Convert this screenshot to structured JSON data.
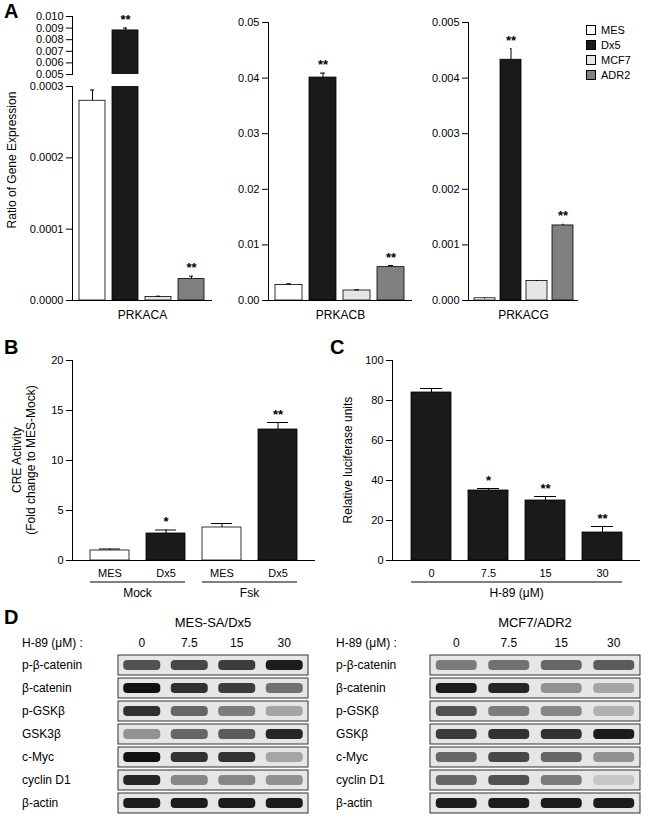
{
  "chart_data": [
    {
      "panel": "A",
      "type": "bar",
      "y_label": "Ratio of Gene Expression",
      "legend": "top-right",
      "series": [
        {
          "name": "MES",
          "color": "#ffffff"
        },
        {
          "name": "Dx5",
          "color": "#1a1a1a"
        },
        {
          "name": "MCF7",
          "color": "#e6e6e6"
        },
        {
          "name": "ADR2",
          "color": "#808080"
        }
      ],
      "subplots": [
        {
          "category": "PRKACA",
          "y_segments": [
            {
              "ylim": [
                0,
                0.0003
              ],
              "yticks": [
                {
                  "value": 0,
                  "label": "0.0000"
                },
                0.0001,
                0.0002,
                0.0003
              ]
            },
            {
              "ylim": [
                0.005,
                0.01
              ],
              "yticks": [
                0.005,
                0.006,
                0.007,
                0.008,
                0.009,
                {
                  "value": 0.01,
                  "label": "0.010"
                }
              ]
            }
          ],
          "values": [
            0.00028,
            0.0088,
            5e-06,
            3e-05
          ],
          "errors": [
            1.5e-05,
            0.0002,
            1e-06,
            4e-06
          ],
          "annotations": [
            null,
            "**",
            null,
            "**"
          ]
        },
        {
          "category": "PRKACB",
          "ylim": [
            0,
            0.05
          ],
          "yticks": [
            {
              "value": 0,
              "label": "0.00"
            },
            0.01,
            0.02,
            0.03,
            0.04,
            0.05
          ],
          "values": [
            0.0028,
            0.0401,
            0.0018,
            0.006
          ],
          "errors": [
            0.0002,
            0.0008,
            0.0001,
            0.0003
          ],
          "annotations": [
            null,
            "**",
            null,
            "**"
          ]
        },
        {
          "category": "PRKACG",
          "ylim": [
            0,
            0.005
          ],
          "yticks": [
            {
              "value": 0,
              "label": "0.000"
            },
            0.001,
            0.002,
            0.003,
            0.004,
            0.005
          ],
          "values": [
            4e-05,
            0.00433,
            0.00035,
            0.00135
          ],
          "errors": [
            3e-06,
            0.0002,
            1e-05,
            2e-05
          ],
          "annotations": [
            null,
            "**",
            null,
            "**"
          ]
        }
      ]
    },
    {
      "panel": "B",
      "type": "bar",
      "y_label": [
        "CRE Activity",
        "(Fold change to MES-Mock)"
      ],
      "categories": [
        "MES",
        "Dx5",
        "MES",
        "Dx5"
      ],
      "groups": [
        {
          "label": "Mock",
          "size": 2
        },
        {
          "label": "Fsk",
          "size": 2
        }
      ],
      "values": [
        1.0,
        2.7,
        3.3,
        13.1
      ],
      "errors": [
        0.15,
        0.35,
        0.4,
        0.7
      ],
      "annotations": [
        null,
        "*",
        null,
        "**"
      ],
      "colors": [
        "#ffffff",
        "#1a1a1a",
        "#ffffff",
        "#1a1a1a"
      ],
      "ylim": [
        0,
        20
      ],
      "yticks": [
        0,
        5,
        10,
        15,
        20
      ]
    },
    {
      "panel": "C",
      "type": "bar",
      "y_label": "Relative luciferase units",
      "x_label": "H-89 (μM)",
      "categories": [
        "0",
        "7.5",
        "15",
        "30"
      ],
      "values": [
        84,
        35,
        30,
        14
      ],
      "errors": [
        2,
        1,
        2,
        3
      ],
      "annotations": [
        null,
        "*",
        "**",
        "**"
      ],
      "color": "#1a1a1a",
      "ylim": [
        0,
        100
      ],
      "yticks": [
        0,
        20,
        40,
        60,
        80,
        100
      ]
    },
    {
      "panel": "D",
      "type": "western_blot",
      "treatment_label": "H-89 (μM) :",
      "lanes": [
        "0",
        "7.5",
        "15",
        "30"
      ],
      "blots": [
        {
          "title": "MES-SA/Dx5",
          "rows": [
            {
              "label": "p-β-catenin",
              "band_intensity": [
                0.7,
                0.75,
                0.8,
                0.95
              ]
            },
            {
              "label": "β-catenin",
              "band_intensity": [
                1.0,
                0.85,
                0.8,
                0.55
              ]
            },
            {
              "label": "p-GSKβ",
              "band_intensity": [
                0.85,
                0.6,
                0.5,
                0.3
              ]
            },
            {
              "label": "GSK3β",
              "band_intensity": [
                0.4,
                0.6,
                0.65,
                0.9
              ]
            },
            {
              "label": "c-Myc",
              "band_intensity": [
                1.0,
                0.85,
                0.85,
                0.3
              ]
            },
            {
              "label": "cyclin D1",
              "band_intensity": [
                0.9,
                0.45,
                0.45,
                0.4
              ]
            },
            {
              "label": "β-actin",
              "band_intensity": [
                0.95,
                0.95,
                0.95,
                0.95
              ]
            }
          ]
        },
        {
          "title": "MCF7/ADR2",
          "rows": [
            {
              "label": "p-β-catenin",
              "band_intensity": [
                0.5,
                0.55,
                0.6,
                0.65
              ]
            },
            {
              "label": "β-catenin",
              "band_intensity": [
                0.95,
                0.9,
                0.4,
                0.3
              ]
            },
            {
              "label": "p-GSKβ",
              "band_intensity": [
                0.7,
                0.5,
                0.45,
                0.25
              ]
            },
            {
              "label": "GSKβ",
              "band_intensity": [
                0.8,
                0.85,
                0.85,
                0.95
              ]
            },
            {
              "label": "c-Myc",
              "band_intensity": [
                0.6,
                0.75,
                0.6,
                0.4
              ]
            },
            {
              "label": "cyclin D1",
              "band_intensity": [
                0.6,
                0.7,
                0.5,
                0.15
              ]
            },
            {
              "label": "β-actin",
              "band_intensity": [
                0.95,
                0.95,
                0.95,
                0.95
              ]
            }
          ]
        }
      ]
    }
  ]
}
